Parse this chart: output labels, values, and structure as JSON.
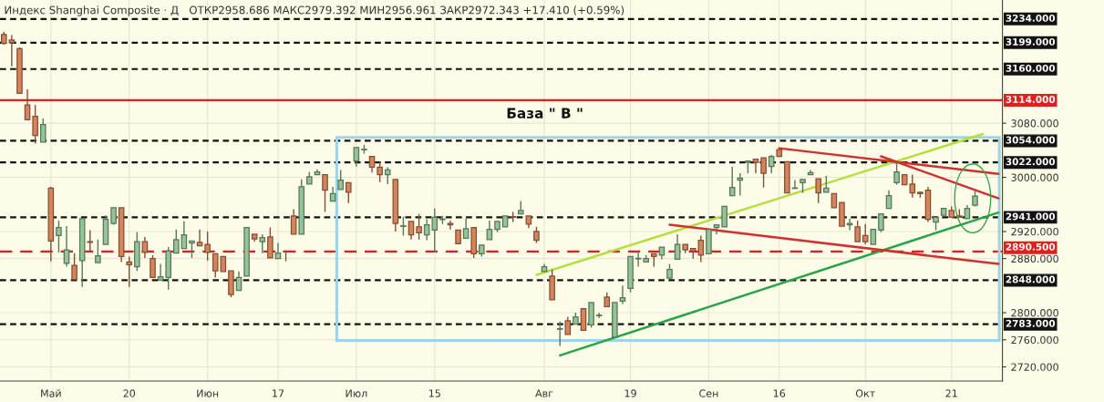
{
  "chart_data": {
    "type": "candlestick",
    "title": "Индекс Shanghai Composite · Д",
    "subtitle": "ОТКР2958.686 МАКС2979.392 МИН2956.961 ЗАКР2972.343 +17.410 (+0.59%)",
    "annotations": [
      "База \" В \""
    ],
    "categories": [
      null,
      null,
      null,
      null,
      null,
      null,
      "Май",
      null,
      null,
      null,
      null,
      null,
      null,
      null,
      null,
      null,
      "20",
      null,
      null,
      null,
      null,
      null,
      null,
      null,
      null,
      null,
      "Июн",
      null,
      null,
      null,
      null,
      null,
      null,
      null,
      null,
      "17",
      null,
      null,
      null,
      null,
      null,
      null,
      null,
      null,
      null,
      "Июл",
      null,
      null,
      null,
      null,
      null,
      null,
      null,
      null,
      null,
      "15",
      null,
      null,
      null,
      null,
      null,
      null,
      null,
      null,
      null,
      null,
      null,
      null,
      null,
      "Авг",
      null,
      null,
      null,
      null,
      null,
      null,
      null,
      null,
      null,
      null,
      "19",
      null,
      null,
      null,
      null,
      null,
      null,
      null,
      null,
      null,
      "Сен",
      null,
      null,
      null,
      null,
      null,
      null,
      null,
      null,
      "16",
      null,
      null,
      null,
      null,
      null,
      null,
      null,
      null,
      null,
      null,
      "Окт",
      null,
      null,
      null,
      null,
      null,
      null,
      null,
      null,
      null,
      null,
      "21",
      null,
      null,
      null,
      null,
      null,
      null
    ],
    "ohlc": [
      [
        3211,
        3215,
        3196,
        3198
      ],
      [
        3203,
        3210,
        3164,
        3199
      ],
      [
        3190,
        3192,
        3124,
        3124
      ],
      [
        3107,
        3130,
        3085,
        3085
      ],
      [
        3090,
        3107,
        3050,
        3062
      ],
      [
        3052,
        3087,
        3052,
        3078
      ],
      [
        2984,
        2986,
        2876,
        2906
      ],
      [
        2914,
        2936,
        2889,
        2926
      ],
      [
        2873,
        2928,
        2868,
        2893
      ],
      [
        2870,
        2888,
        2849,
        2849
      ],
      [
        2877,
        2939,
        2838,
        2939
      ],
      [
        2905,
        2922,
        2889,
        2904
      ],
      [
        2874,
        2908,
        2874,
        2884
      ],
      [
        2901,
        2944,
        2901,
        2938
      ],
      [
        2932,
        2955,
        2930,
        2955
      ],
      [
        2955,
        2955,
        2875,
        2883
      ],
      [
        2875,
        2883,
        2838,
        2871
      ],
      [
        2868,
        2919,
        2862,
        2905
      ],
      [
        2905,
        2912,
        2881,
        2889
      ],
      [
        2880,
        2885,
        2852,
        2852
      ],
      [
        2848,
        2872,
        2848,
        2853
      ],
      [
        2852,
        2897,
        2834,
        2891
      ],
      [
        2888,
        2923,
        2888,
        2908
      ],
      [
        2895,
        2935,
        2895,
        2915
      ],
      [
        2903,
        2906,
        2881,
        2906
      ],
      [
        2904,
        2923,
        2899,
        2899
      ],
      [
        2901,
        2920,
        2877,
        2889
      ],
      [
        2887,
        2887,
        2852,
        2862
      ],
      [
        2883,
        2883,
        2861,
        2861
      ],
      [
        2862,
        2862,
        2823,
        2827
      ],
      [
        2833,
        2861,
        2833,
        2852
      ],
      [
        2854,
        2926,
        2854,
        2926
      ],
      [
        2916,
        2916,
        2905,
        2909
      ],
      [
        2905,
        2916,
        2888,
        2911
      ],
      [
        2912,
        2926,
        2881,
        2881
      ],
      [
        2880,
        2903,
        2880,
        2888
      ],
      [
        2891,
        2891,
        2876,
        2890
      ],
      [
        2943,
        2953,
        2916,
        2916
      ],
      [
        2916,
        2997,
        2916,
        2986
      ],
      [
        2990,
        3008,
        2990,
        3001
      ],
      [
        3004,
        3012,
        3004,
        3008
      ],
      [
        3004,
        3004,
        2949,
        2981
      ],
      [
        2965,
        2986,
        2965,
        2976
      ],
      [
        2982,
        3011,
        2982,
        2996
      ],
      [
        2992,
        2992,
        2962,
        2978
      ],
      [
        3024,
        3044,
        3016,
        3044
      ],
      [
        3041,
        3048,
        3035,
        3041
      ],
      [
        3031,
        3031,
        3007,
        3015
      ],
      [
        3015,
        3023,
        2993,
        3004
      ],
      [
        3004,
        3015,
        2990,
        3011
      ],
      [
        2997,
        2997,
        2920,
        2932
      ],
      [
        2928,
        2942,
        2914,
        2928
      ],
      [
        2935,
        2935,
        2908,
        2915
      ],
      [
        2927,
        2946,
        2908,
        2918
      ],
      [
        2915,
        2938,
        2907,
        2930
      ],
      [
        2922,
        2954,
        2889,
        2941
      ],
      [
        2938,
        2943,
        2931,
        2938
      ],
      [
        2932,
        2936,
        2923,
        2930
      ],
      [
        2922,
        2922,
        2902,
        2902
      ],
      [
        2910,
        2939,
        2910,
        2924
      ],
      [
        2926,
        2926,
        2881,
        2887
      ],
      [
        2887,
        2900,
        2883,
        2900
      ],
      [
        2908,
        2936,
        2908,
        2923
      ],
      [
        2923,
        2935,
        2919,
        2935
      ],
      [
        2927,
        2943,
        2927,
        2943
      ],
      [
        2942,
        2949,
        2934,
        2941
      ],
      [
        2946,
        2965,
        2946,
        2951
      ],
      [
        2943,
        2943,
        2925,
        2931
      ],
      [
        2920,
        2927,
        2903,
        2907
      ],
      [
        2861,
        2872,
        2861,
        2868
      ],
      [
        2854,
        2864,
        2819,
        2819
      ],
      [
        2776,
        2787,
        2751,
        2776
      ],
      [
        2788,
        2794,
        2768,
        2768
      ],
      [
        2783,
        2800,
        2783,
        2794
      ],
      [
        2806,
        2806,
        2774,
        2774
      ],
      [
        2782,
        2815,
        2778,
        2815
      ],
      [
        2796,
        2800,
        2792,
        2796
      ],
      [
        2823,
        2830,
        2809,
        2809
      ],
      [
        2764,
        2815,
        2764,
        2815
      ],
      [
        2817,
        2840,
        2813,
        2822
      ],
      [
        2836,
        2883,
        2830,
        2883
      ],
      [
        2880,
        2892,
        2868,
        2880
      ],
      [
        2875,
        2885,
        2875,
        2880
      ],
      [
        2887,
        2887,
        2868,
        2883
      ],
      [
        2885,
        2897,
        2879,
        2897
      ],
      [
        2851,
        2872,
        2851,
        2864
      ],
      [
        2879,
        2916,
        2879,
        2901
      ],
      [
        2901,
        2901,
        2888,
        2893
      ],
      [
        2895,
        2895,
        2880,
        2891
      ],
      [
        2907,
        2914,
        2875,
        2885
      ],
      [
        2887,
        2923,
        2887,
        2923
      ],
      [
        2926,
        2930,
        2916,
        2930
      ],
      [
        2927,
        2957,
        2927,
        2957
      ],
      [
        2973,
        3016,
        2973,
        2985
      ],
      [
        2996,
        3006,
        2973,
        2999
      ],
      [
        3022,
        3025,
        3006,
        3024
      ],
      [
        3027,
        3027,
        3006,
        3022
      ],
      [
        3029,
        3029,
        2985,
        3006
      ],
      [
        3016,
        3033,
        3006,
        3031
      ],
      [
        3041,
        3043,
        3031,
        3031
      ],
      [
        3023,
        3023,
        2977,
        2977
      ],
      [
        2984,
        2996,
        2984,
        2984
      ],
      [
        2992,
        2997,
        2977,
        2997
      ],
      [
        3004,
        3011,
        3004,
        3007
      ],
      [
        2998,
        2998,
        2962,
        2977
      ],
      [
        2978,
        3002,
        2978,
        2984
      ],
      [
        2976,
        2976,
        2955,
        2955
      ],
      [
        2963,
        2963,
        2928,
        2928
      ],
      [
        2930,
        2939,
        2922,
        2932
      ],
      [
        2927,
        2936,
        2905,
        2905
      ],
      [
        2914,
        2931,
        2901,
        2905
      ],
      [
        2901,
        2923,
        2901,
        2923
      ],
      [
        2922,
        2946,
        2919,
        2946
      ],
      [
        2954,
        2981,
        2954,
        2973
      ],
      [
        2992,
        3023,
        2989,
        3008
      ],
      [
        3004,
        3004,
        2989,
        2989
      ],
      [
        2990,
        3004,
        2970,
        2977
      ],
      [
        2978,
        2978,
        2970,
        2976
      ],
      [
        2981,
        2986,
        2934,
        2938
      ],
      [
        2934,
        2941,
        2922,
        2941
      ],
      [
        2944,
        2954,
        2944,
        2954
      ],
      [
        2951,
        2957,
        2941,
        2941
      ],
      [
        2943,
        2953,
        2941,
        2941
      ],
      [
        2939,
        2959,
        2939,
        2954
      ],
      [
        2958.686,
        2979.392,
        2956.961,
        2972.343
      ],
      null,
      null,
      null
    ],
    "colors": [
      "#d8845a",
      "#d8845a",
      "#d8845a",
      "#d8845a",
      "#d8845a",
      "#93c596",
      "#d8845a",
      "#93c596",
      "#93c596",
      "#d8845a",
      "#93c596",
      "#d8845a",
      "#93c596",
      "#93c596",
      "#93c596",
      "#d8845a",
      "#d8845a",
      "#93c596",
      "#d8845a",
      "#d8845a",
      "#93c596",
      "#93c596",
      "#93c596",
      "#93c596",
      "#93c596",
      "#d8845a",
      "#d8845a",
      "#d8845a",
      "#d8845a",
      "#d8845a",
      "#93c596",
      "#93c596",
      "#d8845a",
      "#93c596",
      "#d8845a",
      "#93c596",
      "#d8845a",
      "#d8845a",
      "#93c596",
      "#93c596",
      "#93c596",
      "#d8845a",
      "#93c596",
      "#93c596",
      "#d8845a",
      "#93c596",
      "#93c596",
      "#d8845a",
      "#d8845a",
      "#93c596",
      "#d8845a",
      "#93c596",
      "#d8845a",
      "#d8845a",
      "#93c596",
      "#93c596",
      "#93c596",
      "#d8845a",
      "#d8845a",
      "#93c596",
      "#d8845a",
      "#93c596",
      "#93c596",
      "#93c596",
      "#93c596",
      "#d8845a",
      "#93c596",
      "#d8845a",
      "#d8845a",
      "#93c596",
      "#d8845a",
      "#93c596",
      "#d8845a",
      "#93c596",
      "#d8845a",
      "#93c596",
      "#93c596",
      "#d8845a",
      "#93c596",
      "#93c596",
      "#93c596",
      "#93c596",
      "#93c596",
      "#d8845a",
      "#93c596",
      "#93c596",
      "#93c596",
      "#d8845a",
      "#d8845a",
      "#d8845a",
      "#93c596",
      "#93c596",
      "#93c596",
      "#93c596",
      "#93c596",
      "#93c596",
      "#d8845a",
      "#d8845a",
      "#93c596",
      "#d8845a",
      "#d8845a",
      "#93c596",
      "#93c596",
      "#93c596",
      "#d8845a",
      "#93c596",
      "#d8845a",
      "#d8845a",
      "#93c596",
      "#d8845a",
      "#d8845a",
      "#93c596",
      "#93c596",
      "#93c596",
      "#93c596",
      "#d8845a",
      "#d8845a",
      "#d8845a",
      "#d8845a",
      "#93c596",
      "#93c596",
      "#d8845a",
      "#d8845a",
      "#93c596",
      "#93c596",
      null,
      null,
      null
    ],
    "series": [
      {
        "type": "line",
        "color": "#b3e03a",
        "values": [
          null,
          null,
          null,
          null,
          null,
          null,
          null,
          null,
          null,
          null,
          null,
          null,
          null,
          null,
          null,
          null,
          null,
          null,
          null,
          null,
          null,
          null,
          null,
          null,
          null,
          null,
          null,
          null,
          null,
          null,
          null,
          null,
          null,
          null,
          null,
          null,
          null,
          null,
          null,
          null,
          null,
          null,
          null,
          null,
          null,
          null,
          null,
          null,
          null,
          null,
          null,
          null,
          null,
          null,
          null,
          null,
          null,
          null,
          null,
          null,
          null,
          null,
          null,
          null,
          null,
          null,
          null,
          null,
          2856,
          null,
          null,
          null,
          null,
          null,
          null,
          null,
          null,
          null,
          null,
          null,
          null,
          null,
          null,
          null,
          null,
          null,
          null,
          null,
          null,
          null,
          null,
          null,
          null,
          null,
          null,
          null,
          null,
          null,
          null,
          null,
          null,
          null,
          null,
          null,
          null,
          null,
          null,
          null,
          null,
          null,
          null,
          null,
          null,
          null,
          null,
          null,
          null,
          null,
          null,
          null,
          null,
          null,
          null,
          null,
          null,
          3064,
          null,
          null
        ]
      },
      {
        "type": "line",
        "color": "#27a447",
        "values": [
          null,
          null,
          null,
          null,
          null,
          null,
          null,
          null,
          null,
          null,
          null,
          null,
          null,
          null,
          null,
          null,
          null,
          null,
          null,
          null,
          null,
          null,
          null,
          null,
          null,
          null,
          null,
          null,
          null,
          null,
          null,
          null,
          null,
          null,
          null,
          null,
          null,
          null,
          null,
          null,
          null,
          null,
          null,
          null,
          null,
          null,
          null,
          null,
          null,
          null,
          null,
          null,
          null,
          null,
          null,
          null,
          null,
          null,
          null,
          null,
          null,
          null,
          null,
          null,
          null,
          null,
          null,
          null,
          null,
          null,
          null,
          2737,
          null,
          null,
          null,
          null,
          null,
          null,
          null,
          null,
          null,
          null,
          null,
          null,
          null,
          null,
          null,
          null,
          null,
          null,
          null,
          null,
          null,
          null,
          null,
          null,
          null,
          null,
          null,
          null,
          null,
          null,
          null,
          null,
          null,
          null,
          null,
          null,
          null,
          null,
          null,
          null,
          null,
          null,
          null,
          null,
          null,
          null,
          null,
          null,
          null,
          null,
          null,
          null,
          null,
          null,
          null,
          2948
        ]
      },
      {
        "type": "line",
        "color": "#d0302f",
        "values": [
          null,
          null,
          null,
          null,
          null,
          null,
          null,
          null,
          null,
          null,
          null,
          null,
          null,
          null,
          null,
          null,
          null,
          null,
          null,
          null,
          null,
          null,
          null,
          null,
          null,
          null,
          null,
          null,
          null,
          null,
          null,
          null,
          null,
          null,
          null,
          null,
          null,
          null,
          null,
          null,
          null,
          null,
          null,
          null,
          null,
          null,
          null,
          null,
          null,
          null,
          null,
          null,
          null,
          null,
          null,
          null,
          null,
          null,
          null,
          null,
          null,
          null,
          null,
          null,
          null,
          null,
          null,
          null,
          null,
          null,
          null,
          null,
          null,
          null,
          null,
          null,
          null,
          null,
          null,
          null,
          null,
          null,
          null,
          null,
          null,
          null,
          null,
          null,
          null,
          null,
          null,
          null,
          null,
          null,
          null,
          null,
          null,
          null,
          null,
          3043,
          null,
          null,
          null,
          null,
          null,
          null,
          null,
          null,
          null,
          null,
          null,
          null,
          null,
          null,
          null,
          null,
          null,
          null,
          null,
          null,
          null,
          null,
          null,
          null,
          null,
          null,
          null,
          3005
        ]
      },
      {
        "type": "line",
        "color": "#d0302f",
        "values": [
          null,
          null,
          null,
          null,
          null,
          null,
          null,
          null,
          null,
          null,
          null,
          null,
          null,
          null,
          null,
          null,
          null,
          null,
          null,
          null,
          null,
          null,
          null,
          null,
          null,
          null,
          null,
          null,
          null,
          null,
          null,
          null,
          null,
          null,
          null,
          null,
          null,
          null,
          null,
          null,
          null,
          null,
          null,
          null,
          null,
          null,
          null,
          null,
          null,
          null,
          null,
          null,
          null,
          null,
          null,
          null,
          null,
          null,
          null,
          null,
          null,
          null,
          null,
          null,
          null,
          null,
          null,
          null,
          null,
          null,
          null,
          null,
          null,
          null,
          null,
          null,
          null,
          null,
          null,
          null,
          null,
          null,
          null,
          null,
          null,
          null,
          null,
          null,
          null,
          null,
          null,
          null,
          null,
          null,
          null,
          null,
          null,
          null,
          null,
          null,
          null,
          null,
          null,
          null,
          null,
          null,
          null,
          null,
          null,
          null,
          null,
          null,
          3031,
          null,
          null,
          null,
          null,
          null,
          null,
          null,
          null,
          null,
          null,
          null,
          null,
          null,
          null,
          2969
        ]
      },
      {
        "type": "line",
        "color": "#d0302f",
        "values": [
          null,
          null,
          null,
          null,
          null,
          null,
          null,
          null,
          null,
          null,
          null,
          null,
          null,
          null,
          null,
          null,
          null,
          null,
          null,
          null,
          null,
          null,
          null,
          null,
          null,
          null,
          null,
          null,
          null,
          null,
          null,
          null,
          null,
          null,
          null,
          null,
          null,
          null,
          null,
          null,
          null,
          null,
          null,
          null,
          null,
          null,
          null,
          null,
          null,
          null,
          null,
          null,
          null,
          null,
          null,
          null,
          null,
          null,
          null,
          null,
          null,
          null,
          null,
          null,
          null,
          null,
          null,
          null,
          null,
          null,
          null,
          null,
          null,
          null,
          null,
          null,
          null,
          null,
          null,
          null,
          null,
          null,
          null,
          null,
          null,
          2930,
          null,
          null,
          null,
          null,
          null,
          null,
          null,
          null,
          null,
          null,
          null,
          null,
          null,
          null,
          null,
          null,
          null,
          null,
          null,
          null,
          null,
          null,
          null,
          null,
          null,
          null,
          null,
          null,
          null,
          null,
          null,
          null,
          null,
          null,
          null,
          null,
          null,
          null,
          null,
          null,
          null,
          2872
        ]
      }
    ],
    "ref_lines": [
      {
        "axis": "y",
        "value": 3234,
        "label": "3234.000",
        "color": "#131313",
        "line_style": "dotted"
      },
      {
        "axis": "y",
        "value": 3199,
        "label": "3199.000",
        "color": "#131313",
        "line_style": "dotted"
      },
      {
        "axis": "y",
        "value": 3160,
        "label": "3160.000",
        "color": "#131313",
        "line_style": "dotted"
      },
      {
        "axis": "y",
        "value": 3114,
        "label": "3114.000",
        "color": "#e0201c",
        "line_style": "solid"
      },
      {
        "axis": "y",
        "value": 3054,
        "label": "3054.000",
        "color": "#131313",
        "line_style": "dotted"
      },
      {
        "axis": "y",
        "value": 3022,
        "label": "3022.000",
        "color": "#131313",
        "line_style": "dotted"
      },
      {
        "axis": "y",
        "value": 2941,
        "label": "2941.000",
        "color": "#131313",
        "line_style": "dotted"
      },
      {
        "axis": "y",
        "value": 2890.5,
        "label": "2890.500",
        "color": "#e0201c",
        "line_style": "dashed"
      },
      {
        "axis": "y",
        "value": 2848,
        "label": "2848.000",
        "color": "#131313",
        "line_style": "dotted"
      },
      {
        "axis": "y",
        "value": 2783,
        "label": "2783.000",
        "color": "#131313",
        "line_style": "dotted"
      }
    ],
    "ylim": [
      2699,
      3262
    ],
    "yticks": [
      {
        "value": 2720,
        "label": "2720.000"
      },
      {
        "value": 2760,
        "label": "2760.000"
      },
      {
        "value": 2800,
        "label": "2800.000"
      },
      {
        "value": 2880,
        "label": "2880.000"
      },
      {
        "value": 2920,
        "label": "2920.000"
      },
      {
        "value": 3000,
        "label": "3000.000"
      },
      {
        "value": 3080,
        "label": "3080.000"
      }
    ],
    "grid": true,
    "legend": false
  }
}
